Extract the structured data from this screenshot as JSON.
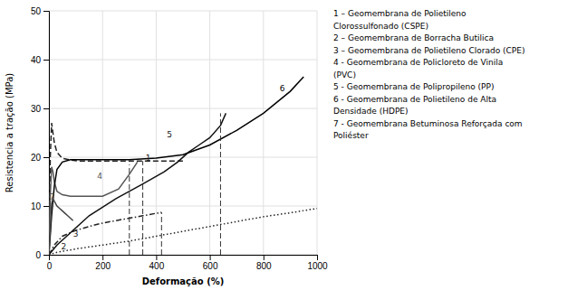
{
  "chart_data": {
    "type": "line",
    "xlabel": "Deformação (%)",
    "ylabel": "Resistencia a tração (MPa)",
    "xlim": [
      0,
      1000
    ],
    "ylim": [
      0,
      50
    ],
    "xticks": [
      0,
      200,
      400,
      600,
      800,
      1000
    ],
    "yticks": [
      0,
      10,
      20,
      30,
      40,
      50
    ],
    "grid": true,
    "series": [
      {
        "name": "1",
        "color": "#222222",
        "line_style": "dashed",
        "x": [
          0,
          5,
          10,
          15,
          20,
          30,
          50,
          80,
          120,
          200,
          300,
          400,
          500
        ],
        "values": [
          0,
          20,
          27,
          25,
          23,
          21,
          19.8,
          19.4,
          19.2,
          19.2,
          19.2,
          19.2,
          19.2
        ],
        "label_x": 370,
        "label_y": 19.8
      },
      {
        "name": "2",
        "color": "#222222",
        "line_style": "dotted",
        "x": [
          0,
          30,
          100,
          200,
          300,
          400,
          500,
          600,
          700,
          800,
          900,
          1000
        ],
        "values": [
          0,
          0.5,
          1.2,
          2.0,
          2.8,
          3.8,
          4.8,
          5.8,
          6.8,
          7.8,
          8.6,
          9.5
        ],
        "label_x": 55,
        "label_y": 1.5
      },
      {
        "name": "3",
        "color": "#222222",
        "line_style": "dashdot",
        "x": [
          0,
          20,
          50,
          100,
          150,
          200,
          250,
          300,
          350,
          400,
          420
        ],
        "values": [
          0,
          2.0,
          3.8,
          5.0,
          5.8,
          6.5,
          7.0,
          7.5,
          8.0,
          8.5,
          8.7
        ],
        "label_x": 100,
        "label_y": 4.2
      },
      {
        "name": "4",
        "color": "#555555",
        "line_style": "solid",
        "x": [
          0,
          5,
          10,
          15,
          20,
          30,
          50,
          80,
          120,
          200,
          260,
          300,
          330
        ],
        "values": [
          0,
          12,
          18,
          17,
          15,
          13,
          12.3,
          12.0,
          12.0,
          12.0,
          13.5,
          16.5,
          19.0
        ],
        "label_x": 190,
        "label_y": 16.0
      },
      {
        "name": "5",
        "color": "#111111",
        "line_style": "solid",
        "x": [
          0,
          30,
          80,
          150,
          250,
          350,
          430,
          480,
          520,
          560,
          600,
          640,
          660
        ],
        "values": [
          0,
          2.0,
          4.5,
          8.0,
          11.5,
          14.5,
          17.0,
          19.0,
          21.0,
          22.5,
          24.0,
          26.5,
          29.0
        ],
        "label_x": 450,
        "label_y": 24.5
      },
      {
        "name": "6",
        "color": "#000000",
        "line_style": "solid",
        "x": [
          0,
          10,
          20,
          30,
          50,
          80,
          120,
          200,
          300,
          400,
          500,
          600,
          700,
          800,
          900,
          950
        ],
        "values": [
          0,
          8.0,
          14.0,
          17.5,
          19.0,
          19.5,
          19.5,
          19.5,
          19.5,
          19.8,
          20.5,
          22.5,
          25.5,
          29.0,
          33.5,
          36.5
        ],
        "label_x": 870,
        "label_y": 34.0
      },
      {
        "name": "7",
        "color": "#444444",
        "line_style": "solid",
        "x": [
          0,
          5,
          10,
          15,
          20,
          30,
          40,
          50,
          60,
          70,
          80,
          90
        ],
        "values": [
          0,
          5.0,
          10.5,
          11.5,
          11.0,
          10.0,
          9.5,
          9.0,
          8.5,
          8.0,
          7.5,
          7.0
        ],
        "label_x": 12,
        "label_y": 11.8
      }
    ],
    "reference_lines": [
      {
        "x": 350,
        "y0": 0,
        "y1": 19.2,
        "color": "#333333",
        "line_style": "dashed"
      },
      {
        "x": 300,
        "y0": 0,
        "y1": 18.5,
        "color": "#333333",
        "line_style": "dashed"
      },
      {
        "x": 640,
        "y0": 0,
        "y1": 29.0,
        "color": "#333333",
        "line_style": "dashed"
      },
      {
        "x": 420,
        "y0": 0,
        "y1": 8.7,
        "color": "#333333",
        "line_style": "dashed"
      }
    ],
    "notes": [
      "1 – Geomembrana de Polietileno",
      "Clorossulfonado (CSPE)",
      "2 – Geomembrana de Borracha Butilica",
      "3 – Geomembrana de Polietileno Clorado (CPE)",
      "4 - Geomembrana de Policloreto de Vinila",
      "(PVC)",
      "5 - Geomembrana de Polipropileno (PP)",
      "6 - Geomembrana de Polietileno de Alta",
      "Densidade (HDPE)",
      "7 - Geomembrana Betuminosa Reforçada com",
      "Poliéster"
    ]
  }
}
